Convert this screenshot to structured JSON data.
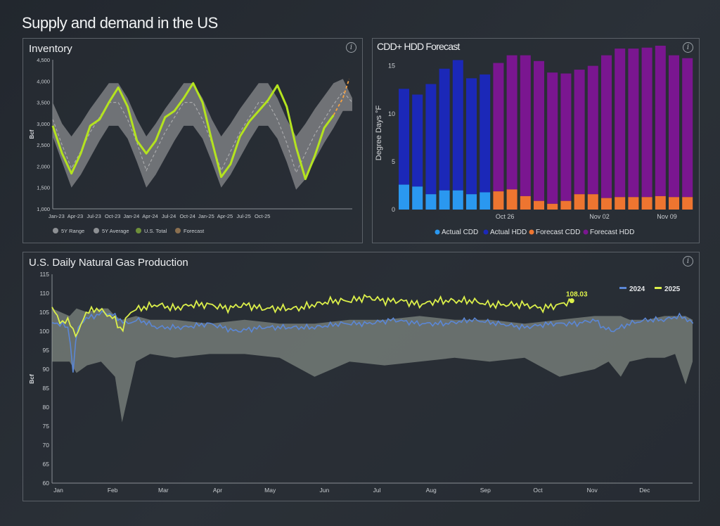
{
  "page": {
    "title": "Supply and demand in the US"
  },
  "panels": {
    "inventory": {
      "title": "Inventory",
      "info_icon": "info-icon"
    },
    "forecast": {
      "title": "CDD+ HDD Forecast",
      "info_icon": "info-icon"
    },
    "production": {
      "title": "U.S. Daily Natural Gas Production",
      "info_icon": "info-icon"
    }
  },
  "colors": {
    "range": "#7c7f82",
    "average": "#a9aaac",
    "us_total": "#b4e31f",
    "forecast_line": "#f5a142",
    "actual_cdd": "#2a98f0",
    "actual_hdd": "#1b28b8",
    "forecast_cdd": "#ee7530",
    "forecast_hdd": "#7a1690",
    "line_2024": "#5b87d6",
    "line_2025": "#dcf04a",
    "band": "#9ca59b"
  },
  "chart_data": [
    {
      "id": "inventory",
      "type": "line",
      "title": "Inventory",
      "xlabel": "",
      "ylabel": "Bcf",
      "ylim": [
        1000,
        4500
      ],
      "yticks": [
        "1,000",
        "1,500",
        "2,000",
        "2,500",
        "3,000",
        "3,500",
        "4,000",
        "4,500"
      ],
      "x_ticks": [
        "Jan-23",
        "Apr-23",
        "Jul-23",
        "Oct-23",
        "Jan-24",
        "Apr-24",
        "Jul-24",
        "Oct-24",
        "Jan-25",
        "Apr-25",
        "Jul-25",
        "Oct-25"
      ],
      "legend": [
        "5Y Range",
        "5Y Average",
        "U.S. Total",
        "Forecast"
      ],
      "legend_position": "bottom",
      "x_months": [
        0,
        1.5,
        3,
        4.5,
        6,
        7.5,
        9,
        10.5,
        12,
        13.5,
        15,
        16.5,
        18,
        19.5,
        21,
        22.5,
        24,
        25.5,
        27,
        28.5,
        30,
        31.5,
        33,
        34.5,
        36,
        37.5,
        39,
        40.5,
        42,
        43.5,
        45,
        46.5,
        48
      ],
      "range_high": [
        3500,
        3000,
        2700,
        3000,
        3350,
        3650,
        3950,
        3950,
        3600,
        3100,
        2700,
        3000,
        3350,
        3650,
        3950,
        3950,
        3600,
        3100,
        2700,
        3000,
        3350,
        3650,
        3950,
        3950,
        3600,
        3100,
        2700,
        3000,
        3350,
        3650,
        3950,
        4050,
        3600
      ],
      "range_low": [
        2700,
        2100,
        1500,
        1800,
        2200,
        2600,
        2950,
        2950,
        2650,
        2100,
        1500,
        1800,
        2200,
        2600,
        2950,
        2950,
        2650,
        2100,
        1500,
        1800,
        2200,
        2600,
        2950,
        2950,
        2650,
        2100,
        1450,
        1700,
        2150,
        2550,
        2900,
        3300,
        3300
      ],
      "average": [
        3100,
        2500,
        1950,
        2350,
        2800,
        3150,
        3500,
        3500,
        3100,
        2550,
        1900,
        2350,
        2800,
        3150,
        3500,
        3500,
        3100,
        2550,
        1900,
        2350,
        2800,
        3150,
        3500,
        3500,
        3100,
        2550,
        1850,
        2300,
        2750,
        3100,
        3450,
        3750,
        3500
      ],
      "us_total_x": [
        0,
        1.5,
        3,
        4.5,
        6,
        7.5,
        9,
        10.5,
        12,
        13.5,
        15,
        16.5,
        18,
        19.5,
        21,
        22.5,
        24,
        25.5,
        27,
        28.5,
        30,
        31.5,
        33,
        34.5,
        36,
        37.5,
        39,
        40.5,
        42,
        43.5,
        45
      ],
      "us_total": [
        2950,
        2300,
        1830,
        2300,
        2950,
        3100,
        3500,
        3850,
        3400,
        2600,
        2300,
        2600,
        3150,
        3300,
        3600,
        3950,
        3500,
        2600,
        1750,
        2050,
        2700,
        3050,
        3300,
        3550,
        3900,
        3400,
        2450,
        1700,
        2250,
        2900,
        3200
      ],
      "forecast_x": [
        45,
        46.5,
        47.5
      ],
      "forecast": [
        3200,
        3600,
        4050
      ]
    },
    {
      "id": "forecast",
      "type": "bar",
      "title": "CDD+ HDD Forecast",
      "xlabel": "",
      "ylabel": "Degree Days °F",
      "ylim": [
        0,
        16
      ],
      "yticks": [
        "0",
        "5",
        "10",
        "15"
      ],
      "x_ticks": [
        "Oct 26",
        "Nov 02",
        "Nov 09"
      ],
      "legend": [
        "Actual  CDD",
        "Actual  HDD",
        "Forecast CDD",
        "Forecast HDD"
      ],
      "legend_position": "bottom",
      "bars": [
        {
          "kind": "actual",
          "cdd": 2.6,
          "hdd": 10.0
        },
        {
          "kind": "actual",
          "cdd": 2.4,
          "hdd": 9.6
        },
        {
          "kind": "actual",
          "cdd": 1.6,
          "hdd": 11.5
        },
        {
          "kind": "actual",
          "cdd": 2.0,
          "hdd": 12.7
        },
        {
          "kind": "actual",
          "cdd": 2.0,
          "hdd": 13.6
        },
        {
          "kind": "actual",
          "cdd": 1.6,
          "hdd": 12.1
        },
        {
          "kind": "actual",
          "cdd": 1.8,
          "hdd": 12.3
        },
        {
          "kind": "forecast",
          "cdd": 1.9,
          "hdd": 13.4
        },
        {
          "kind": "forecast",
          "cdd": 2.1,
          "hdd": 14.0
        },
        {
          "kind": "forecast",
          "cdd": 1.4,
          "hdd": 14.7
        },
        {
          "kind": "forecast",
          "cdd": 0.9,
          "hdd": 14.6
        },
        {
          "kind": "forecast",
          "cdd": 0.6,
          "hdd": 13.7
        },
        {
          "kind": "forecast",
          "cdd": 0.9,
          "hdd": 13.3
        },
        {
          "kind": "forecast",
          "cdd": 1.6,
          "hdd": 13.0
        },
        {
          "kind": "forecast",
          "cdd": 1.6,
          "hdd": 13.4
        },
        {
          "kind": "forecast",
          "cdd": 1.2,
          "hdd": 14.9
        },
        {
          "kind": "forecast",
          "cdd": 1.3,
          "hdd": 15.5
        },
        {
          "kind": "forecast",
          "cdd": 1.3,
          "hdd": 15.5
        },
        {
          "kind": "forecast",
          "cdd": 1.3,
          "hdd": 15.6
        },
        {
          "kind": "forecast",
          "cdd": 1.4,
          "hdd": 15.7
        },
        {
          "kind": "forecast",
          "cdd": 1.3,
          "hdd": 14.8
        },
        {
          "kind": "forecast",
          "cdd": 1.3,
          "hdd": 14.5
        }
      ],
      "tick_bar_index": [
        8,
        15,
        20
      ]
    },
    {
      "id": "production",
      "type": "line",
      "title": "U.S. Daily Natural Gas Production",
      "xlabel": "",
      "ylabel": "Bcf",
      "ylim": [
        60,
        115
      ],
      "yticks": [
        "60",
        "65",
        "70",
        "75",
        "80",
        "85",
        "90",
        "95",
        "100",
        "105",
        "110",
        "115"
      ],
      "x_ticks": [
        "Jan",
        "Feb",
        "Mar",
        "Apr",
        "May",
        "Jun",
        "Jul",
        "Aug",
        "Sep",
        "Oct",
        "Nov",
        "Dec"
      ],
      "legend": [
        "2024",
        "2025"
      ],
      "legend_position": "top-right",
      "end_label": "108.03",
      "end_value": 108.03,
      "band_x": [
        0,
        10,
        14,
        20,
        28,
        32,
        36,
        40,
        48,
        56,
        70,
        90,
        110,
        130,
        150,
        170,
        190,
        210,
        230,
        250,
        270,
        290,
        310,
        318,
        325,
        330,
        340,
        350,
        356,
        362,
        366
      ],
      "band_high": [
        106,
        104,
        106,
        105,
        106,
        106,
        104,
        103,
        104,
        103,
        103,
        102,
        103,
        102,
        102,
        103,
        103,
        104,
        103,
        103,
        102,
        103,
        104,
        104,
        104,
        103,
        103,
        104,
        104,
        104,
        103
      ],
      "band_low": [
        92,
        92,
        89,
        91,
        92,
        90,
        88,
        76,
        92,
        94,
        93,
        94,
        94,
        93,
        88,
        92,
        91,
        92,
        93,
        92,
        93,
        88,
        90,
        92,
        88,
        92,
        93,
        93,
        94,
        86,
        92
      ],
      "line_2024_x": [
        0,
        6,
        10,
        12,
        14,
        18,
        24,
        30,
        36,
        42,
        50,
        60,
        75,
        90,
        105,
        120,
        135,
        150,
        165,
        180,
        195,
        210,
        225,
        240,
        255,
        270,
        285,
        300,
        310,
        315,
        320,
        330,
        340,
        350,
        358,
        364,
        366
      ],
      "line_2024": [
        102,
        102,
        100,
        89,
        100,
        103,
        104,
        105,
        104,
        102,
        103,
        101,
        101,
        102,
        100,
        101,
        101,
        101,
        102,
        102,
        103,
        102,
        102,
        103,
        102,
        101,
        102,
        102,
        103,
        101,
        100,
        102,
        103,
        103,
        104,
        103,
        102
      ],
      "line_2025_x": [
        0,
        3,
        6,
        10,
        14,
        18,
        24,
        30,
        36,
        40,
        44,
        50,
        60,
        70,
        80,
        90,
        100,
        110,
        120,
        130,
        140,
        150,
        160,
        170,
        180,
        190,
        200,
        210,
        220,
        230,
        240,
        250,
        260,
        270,
        280,
        290,
        297
      ],
      "line_2025": [
        106,
        104,
        102,
        103,
        98,
        104,
        106,
        105,
        103,
        100,
        105,
        106,
        107,
        106,
        107,
        107,
        106,
        107,
        106,
        106,
        106,
        107,
        108,
        108,
        109,
        108,
        108,
        107,
        108,
        108,
        108,
        107,
        107,
        107,
        106,
        107,
        108.03
      ]
    }
  ]
}
